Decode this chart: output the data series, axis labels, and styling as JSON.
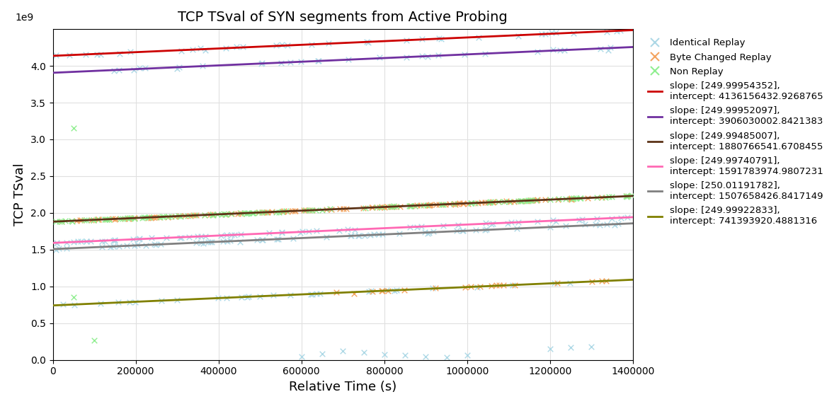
{
  "title": "TCP TSval of SYN segments from Active Probing",
  "xlabel": "Relative Time (s)",
  "ylabel": "TCP TSval",
  "xlim": [
    0,
    1400000
  ],
  "ylim": [
    0,
    4500000000.0
  ],
  "lines": [
    {
      "slope": 249.99954352,
      "intercept": 4136156432.9268765,
      "color": "#cc0000",
      "label": "slope: [249.99954352],\nintercept: 4136156432.9268765"
    },
    {
      "slope": 249.99952097,
      "intercept": 3906030002.8421383,
      "color": "#7030a0",
      "label": "slope: [249.99952097],\nintercept: 3906030002.8421383"
    },
    {
      "slope": 249.99485007,
      "intercept": 1880766541.6708455,
      "color": "#5c3317",
      "label": "slope: [249.99485007],\nintercept: 1880766541.6708455"
    },
    {
      "slope": 249.99740791,
      "intercept": 1591783974.9807231,
      "color": "#ff69b4",
      "label": "slope: [249.99740791],\nintercept: 1591783974.9807231"
    },
    {
      "slope": 250.01191782,
      "intercept": 1507658426.8417149,
      "color": "#808080",
      "label": "slope: [250.01191782],\nintercept: 1507658426.8417149"
    },
    {
      "slope": 249.99922833,
      "intercept": 741393920.4881316,
      "color": "#808000",
      "label": "slope: [249.99922833],\nintercept: 741393920.4881316"
    }
  ],
  "scatter_seed": 42,
  "background_color": "#ffffff",
  "grid_color": "#e0e0e0",
  "yticks": [
    0.0,
    0.5,
    1.0,
    1.5,
    2.0,
    2.5,
    3.0,
    3.5,
    4.0
  ],
  "xticks": [
    0,
    200000,
    400000,
    600000,
    800000,
    1000000,
    1200000,
    1400000
  ]
}
